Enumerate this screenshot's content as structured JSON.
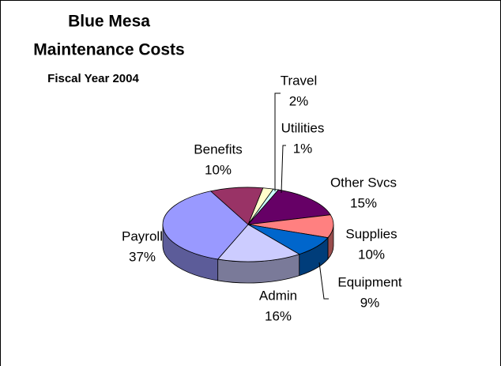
{
  "chart_data": {
    "type": "pie",
    "title": [
      "Blue Mesa",
      "Maintenance Costs"
    ],
    "subtitle": "Fiscal Year 2004",
    "categories": [
      "Travel",
      "Utilities",
      "Other Svcs",
      "Supplies",
      "Equipment",
      "Admin",
      "Payroll",
      "Benefits"
    ],
    "values": [
      2,
      1,
      15,
      10,
      9,
      16,
      37,
      10
    ],
    "value_labels": [
      "2%",
      "1%",
      "15%",
      "10%",
      "9%",
      "16%",
      "37%",
      "10%"
    ],
    "colors": [
      "#FFFFCC",
      "#CCFFFF",
      "#660066",
      "#FF8080",
      "#0066CC",
      "#CCCCFF",
      "#9999FF",
      "#993366"
    ]
  }
}
